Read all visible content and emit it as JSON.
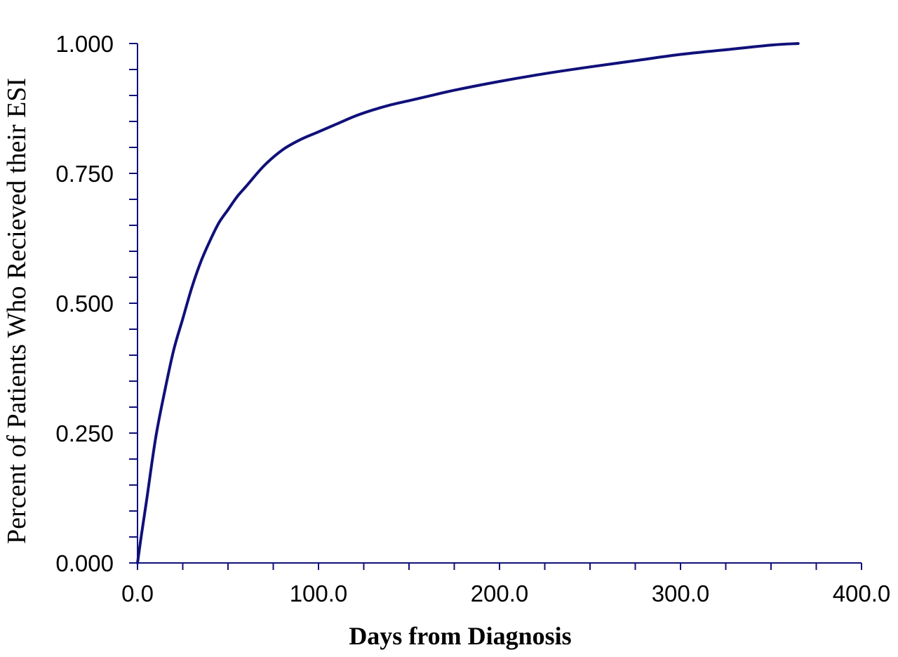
{
  "chart_data": {
    "type": "line",
    "title": "",
    "xlabel": "Days from Diagnosis",
    "ylabel": "Percent of Patients Who Recieved their ESI",
    "xlim": [
      0,
      400
    ],
    "ylim": [
      0,
      1
    ],
    "x_ticks": [
      "0.0",
      "100.0",
      "200.0",
      "300.0",
      "400.0"
    ],
    "y_ticks": [
      "0.000",
      "0.250",
      "0.500",
      "0.750",
      "1.000"
    ],
    "grid": false,
    "legend": "none",
    "series": [
      {
        "color": "#10107a",
        "points": [
          [
            0,
            0
          ],
          [
            2,
            0.05
          ],
          [
            5,
            0.12
          ],
          [
            10,
            0.24
          ],
          [
            15,
            0.33
          ],
          [
            20,
            0.41
          ],
          [
            25,
            0.47
          ],
          [
            30,
            0.53
          ],
          [
            35,
            0.58
          ],
          [
            40,
            0.62
          ],
          [
            45,
            0.655
          ],
          [
            50,
            0.68
          ],
          [
            55,
            0.705
          ],
          [
            60,
            0.725
          ],
          [
            70,
            0.765
          ],
          [
            80,
            0.795
          ],
          [
            90,
            0.815
          ],
          [
            100,
            0.83
          ],
          [
            110,
            0.845
          ],
          [
            120,
            0.86
          ],
          [
            130,
            0.872
          ],
          [
            140,
            0.882
          ],
          [
            150,
            0.89
          ],
          [
            160,
            0.898
          ],
          [
            175,
            0.91
          ],
          [
            200,
            0.927
          ],
          [
            225,
            0.942
          ],
          [
            250,
            0.955
          ],
          [
            275,
            0.967
          ],
          [
            300,
            0.979
          ],
          [
            325,
            0.988
          ],
          [
            350,
            0.997
          ],
          [
            365,
            1.0
          ]
        ]
      }
    ]
  }
}
